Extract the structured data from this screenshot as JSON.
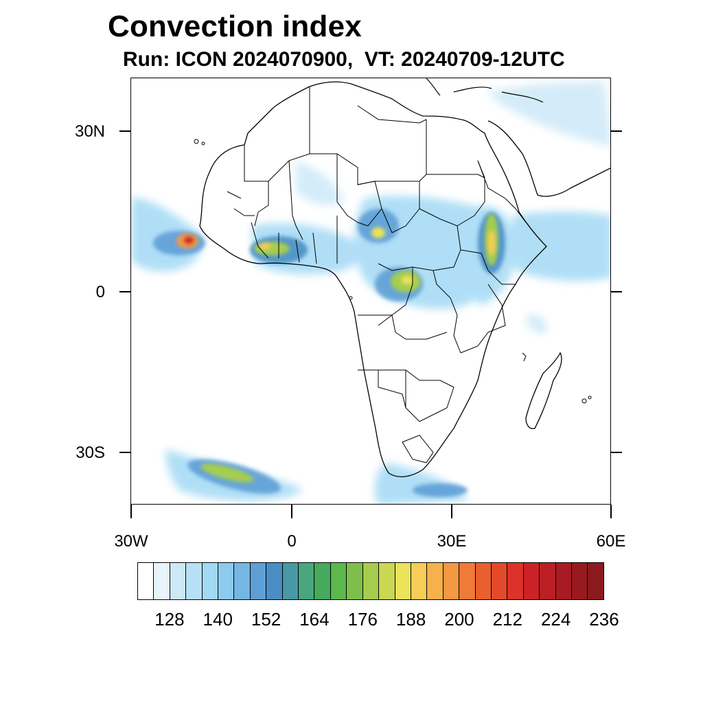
{
  "title": "Convection index",
  "subtitle": "Run: ICON 2024070900,  VT: 20240709-12UTC",
  "latitude_labels": [
    "30N",
    "0",
    "30S"
  ],
  "longitude_labels": [
    "30W",
    "0",
    "30E",
    "60E"
  ],
  "colorbar": {
    "colors": [
      "#ffffff",
      "#e7f4fc",
      "#cde9f8",
      "#b7e0f7",
      "#a2d9f5",
      "#8ccbef",
      "#74b6e4",
      "#5e9fd6",
      "#4a8ec6",
      "#4898a5",
      "#49a67f",
      "#46aa5c",
      "#5ab84d",
      "#7ebf4c",
      "#a6cd4d",
      "#c9d753",
      "#ece35a",
      "#f7cd57",
      "#f6b14d",
      "#f59842",
      "#f07a37",
      "#ea5f2e",
      "#e34a2a",
      "#dc3229",
      "#cc2227",
      "#b91f25",
      "#a71c22",
      "#981a1f",
      "#8a1a1e"
    ],
    "labels": [
      "128",
      "140",
      "152",
      "164",
      "176",
      "188",
      "200",
      "212",
      "224",
      "236"
    ]
  },
  "map": {
    "region": "Africa",
    "lon_range": [
      -30,
      60
    ],
    "lat_range": [
      -40,
      40
    ],
    "field": "convection index"
  }
}
